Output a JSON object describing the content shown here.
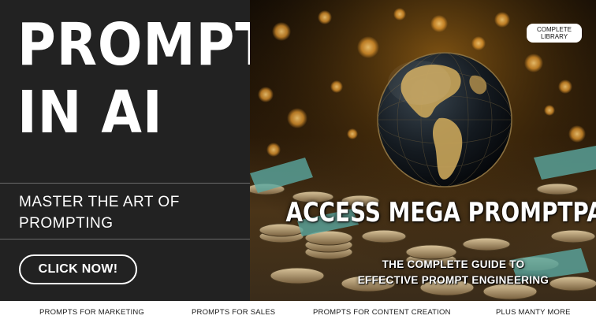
{
  "headline": {
    "line1": "PROMPTING",
    "line2": "IN AI"
  },
  "subheading": "MASTER THE ART OF PROMPTING",
  "cta_label": "CLICK NOW!",
  "badge_label": "COMPLETE LIBRARY",
  "promo_title": "ACCESS MEGA PROMPTPACK",
  "promo_subtitle_line1": "THE COMPLETE GUIDE TO",
  "promo_subtitle_line2": "EFFECTIVE PROMPT ENGINEERING",
  "footer_items": [
    "PROMPTS FOR MARKETING",
    "PROMPTS FOR SALES",
    "PROMPTS FOR CONTENT CREATION",
    "PLUS MANTY MORE"
  ],
  "colors": {
    "panel": "#222222",
    "text_light": "#ffffff",
    "footer_text": "#1a1a1a",
    "bokeh": "#f4a332"
  }
}
